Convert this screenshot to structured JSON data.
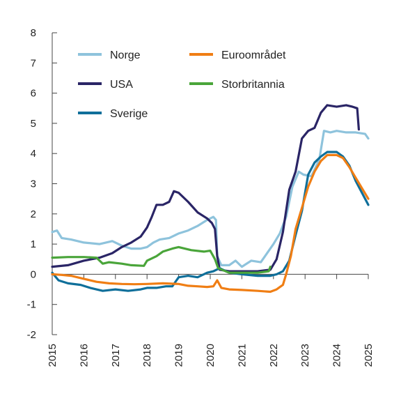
{
  "chart_data": {
    "type": "line",
    "title": "",
    "xlabel": "",
    "ylabel": "",
    "xlim": [
      2015,
      2025
    ],
    "ylim": [
      -2,
      8
    ],
    "x_ticks": [
      "2015",
      "2016",
      "2017",
      "2018",
      "2019",
      "2020",
      "2021",
      "2022",
      "2023",
      "2024",
      "2025"
    ],
    "y_ticks": [
      "-2",
      "-1",
      "0",
      "1",
      "2",
      "3",
      "4",
      "5",
      "6",
      "7",
      "8"
    ],
    "grid": false,
    "legend_position": "top-left",
    "series": [
      {
        "name": "Norge",
        "color": "#8ec3dc",
        "x": [
          2015.0,
          2015.15,
          2015.3,
          2015.6,
          2016.0,
          2016.5,
          2016.9,
          2017.2,
          2017.5,
          2017.8,
          2018.0,
          2018.2,
          2018.4,
          2018.7,
          2019.0,
          2019.3,
          2019.6,
          2019.9,
          2020.1,
          2020.18,
          2020.22,
          2020.35,
          2020.6,
          2020.8,
          2021.0,
          2021.3,
          2021.6,
          2021.8,
          2022.0,
          2022.2,
          2022.4,
          2022.6,
          2022.8,
          2022.95,
          2023.2,
          2023.45,
          2023.6,
          2023.8,
          2024.0,
          2024.3,
          2024.6,
          2024.9,
          2025.0
        ],
        "y": [
          1.4,
          1.45,
          1.2,
          1.15,
          1.05,
          1.0,
          1.1,
          0.95,
          0.85,
          0.85,
          0.9,
          1.05,
          1.15,
          1.2,
          1.35,
          1.45,
          1.6,
          1.8,
          1.9,
          1.8,
          0.6,
          0.3,
          0.3,
          0.45,
          0.25,
          0.45,
          0.4,
          0.7,
          1.0,
          1.35,
          1.9,
          2.9,
          3.4,
          3.3,
          3.25,
          3.8,
          4.75,
          4.7,
          4.75,
          4.7,
          4.7,
          4.65,
          4.5
        ]
      },
      {
        "name": "USA",
        "color": "#2a2566",
        "x": [
          2015.0,
          2015.5,
          2016.0,
          2016.5,
          2016.9,
          2017.2,
          2017.5,
          2017.8,
          2018.0,
          2018.15,
          2018.3,
          2018.5,
          2018.7,
          2018.85,
          2019.0,
          2019.3,
          2019.6,
          2019.9,
          2020.05,
          2020.15,
          2020.22,
          2020.3,
          2020.6,
          2021.0,
          2021.5,
          2021.9,
          2022.1,
          2022.3,
          2022.5,
          2022.7,
          2022.9,
          2023.1,
          2023.3,
          2023.5,
          2023.7,
          2024.0,
          2024.3,
          2024.5,
          2024.65,
          2024.7
        ],
        "y": [
          0.25,
          0.3,
          0.45,
          0.55,
          0.7,
          0.9,
          1.05,
          1.25,
          1.55,
          1.9,
          2.3,
          2.3,
          2.4,
          2.75,
          2.7,
          2.4,
          2.05,
          1.85,
          1.7,
          1.5,
          0.6,
          0.15,
          0.1,
          0.1,
          0.1,
          0.15,
          0.5,
          1.4,
          2.8,
          3.4,
          4.5,
          4.75,
          4.85,
          5.35,
          5.6,
          5.55,
          5.6,
          5.55,
          5.5,
          4.8
        ]
      },
      {
        "name": "Sverige",
        "color": "#0f6f9a",
        "x": [
          2015.0,
          2015.2,
          2015.5,
          2015.9,
          2016.2,
          2016.6,
          2017.0,
          2017.4,
          2017.8,
          2018.0,
          2018.3,
          2018.6,
          2018.8,
          2019.0,
          2019.3,
          2019.6,
          2019.9,
          2020.1,
          2020.3,
          2020.6,
          2021.0,
          2021.5,
          2021.9,
          2022.1,
          2022.3,
          2022.5,
          2022.7,
          2022.9,
          2023.1,
          2023.3,
          2023.5,
          2023.7,
          2024.0,
          2024.2,
          2024.4,
          2024.6,
          2024.8,
          2025.0
        ],
        "y": [
          0.05,
          -0.2,
          -0.3,
          -0.35,
          -0.45,
          -0.55,
          -0.5,
          -0.55,
          -0.5,
          -0.45,
          -0.45,
          -0.4,
          -0.4,
          -0.1,
          -0.05,
          -0.1,
          0.05,
          0.1,
          0.2,
          0.05,
          0.0,
          -0.05,
          -0.05,
          0.0,
          0.1,
          0.45,
          1.3,
          2.1,
          3.3,
          3.7,
          3.9,
          4.05,
          4.05,
          3.9,
          3.6,
          3.1,
          2.7,
          2.3
        ]
      },
      {
        "name": "Euroområdet",
        "color": "#f07e14",
        "x": [
          2015.0,
          2015.3,
          2015.6,
          2016.0,
          2016.4,
          2016.8,
          2017.2,
          2017.6,
          2018.0,
          2018.5,
          2019.0,
          2019.3,
          2019.6,
          2019.9,
          2020.1,
          2020.22,
          2020.35,
          2020.6,
          2021.0,
          2021.5,
          2021.9,
          2022.1,
          2022.3,
          2022.4,
          2022.55,
          2022.7,
          2022.9,
          2023.1,
          2023.3,
          2023.5,
          2023.7,
          2024.0,
          2024.2,
          2024.4,
          2024.6,
          2024.8,
          2025.0
        ],
        "y": [
          0.0,
          -0.02,
          -0.05,
          -0.15,
          -0.25,
          -0.3,
          -0.32,
          -0.33,
          -0.32,
          -0.3,
          -0.32,
          -0.38,
          -0.4,
          -0.42,
          -0.4,
          -0.2,
          -0.45,
          -0.5,
          -0.52,
          -0.55,
          -0.58,
          -0.5,
          -0.35,
          0.0,
          0.6,
          1.5,
          2.2,
          2.9,
          3.4,
          3.75,
          3.95,
          3.95,
          3.85,
          3.55,
          3.2,
          2.85,
          2.5
        ]
      },
      {
        "name": "Storbritannia",
        "color": "#4aa53a",
        "x": [
          2015.0,
          2015.5,
          2016.0,
          2016.4,
          2016.6,
          2016.8,
          2017.2,
          2017.5,
          2017.9,
          2018.0,
          2018.3,
          2018.5,
          2018.8,
          2019.0,
          2019.4,
          2019.8,
          2020.0,
          2020.15,
          2020.25,
          2020.6,
          2021.0,
          2021.5,
          2021.85,
          2021.9
        ],
        "y": [
          0.55,
          0.57,
          0.57,
          0.55,
          0.35,
          0.4,
          0.35,
          0.3,
          0.28,
          0.45,
          0.6,
          0.75,
          0.85,
          0.9,
          0.8,
          0.75,
          0.78,
          0.5,
          0.2,
          0.05,
          0.05,
          0.05,
          0.1,
          0.25
        ]
      }
    ]
  }
}
